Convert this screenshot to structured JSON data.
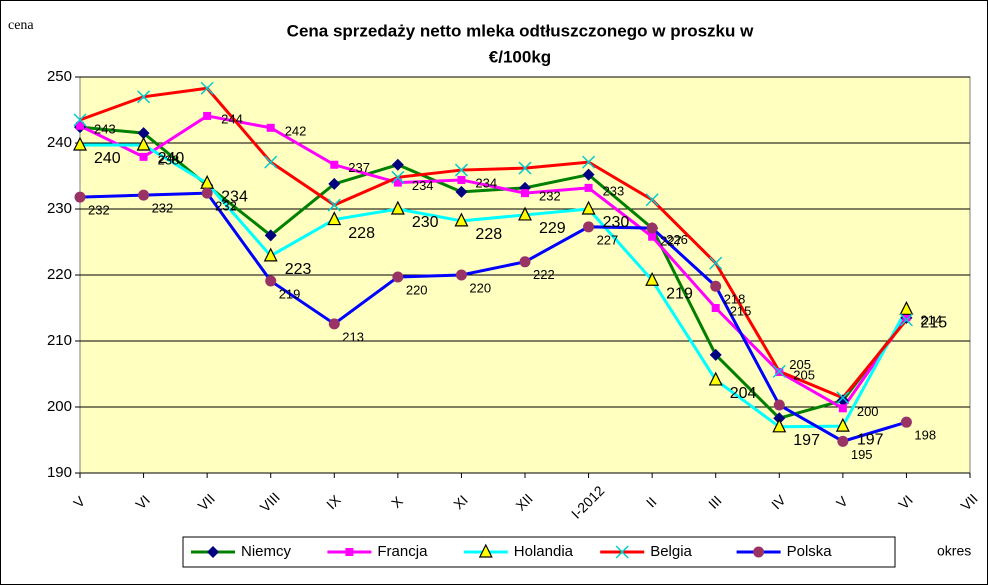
{
  "chart_data": {
    "type": "line",
    "title": [
      "Cena sprzedaży netto mleka odtłuszczonego w proszku w",
      "€/100kg"
    ],
    "y_label": "cena",
    "x_label": "okres",
    "categories": [
      "V",
      "VI",
      "VII",
      "VIII",
      "IX",
      "X",
      "XI",
      "XII",
      "I-2012",
      "II",
      "III",
      "IV",
      "V",
      "VI",
      "VII"
    ],
    "ylim": [
      190,
      250
    ],
    "yticks": [
      190,
      200,
      210,
      220,
      230,
      240,
      250
    ],
    "grid": true,
    "legend": "bottom",
    "series": [
      {
        "name": "Niemcy",
        "color": "#008000",
        "marker": "diamond",
        "marker_color": "#000080",
        "values": [
          242.4,
          241.5,
          233.6,
          226,
          233.8,
          236.7,
          232.6,
          233.2,
          235.2,
          227.1,
          207.9,
          198.3,
          201,
          213.5,
          null
        ],
        "value_labels": [
          null,
          null,
          null,
          null,
          null,
          null,
          null,
          null,
          null,
          null,
          null,
          null,
          null,
          null,
          null
        ]
      },
      {
        "name": "Francja",
        "color": "#ff00ff",
        "marker": "square",
        "marker_color": "#ff00ff",
        "values": [
          242.6,
          237.9,
          244.1,
          242.3,
          236.7,
          234,
          234.4,
          232.4,
          233.2,
          225.8,
          215,
          205.3,
          199.8,
          213.6,
          null
        ],
        "value_labels": [
          "243",
          "238",
          "244",
          "242",
          "237",
          "234",
          "234",
          "232",
          "233",
          "226",
          "215",
          "205",
          "200",
          "214",
          null
        ]
      },
      {
        "name": "Holandia",
        "color": "#00ffff",
        "marker": "triangle",
        "marker_color": "#ffff00",
        "values": [
          239.7,
          239.7,
          233.9,
          222.9,
          228.4,
          230,
          228.2,
          229.1,
          230,
          219.2,
          204.1,
          197,
          197.1,
          214.8,
          null
        ],
        "value_labels": [
          "240",
          "240",
          "234",
          "223",
          "228",
          "230",
          "228",
          "229",
          "230",
          "219",
          "204",
          "197",
          "197",
          "215",
          null
        ]
      },
      {
        "name": "Belgia",
        "color": "#ff0000",
        "marker": "x",
        "marker_color": "#00cccc",
        "values": [
          243.5,
          247,
          248.3,
          237.1,
          230.6,
          234.8,
          235.9,
          236.2,
          237.1,
          231.4,
          221.8,
          205.4,
          201.4,
          213.2,
          null
        ],
        "value_labels": [
          null,
          null,
          null,
          null,
          null,
          null,
          null,
          null,
          null,
          null,
          null,
          "205",
          null,
          null,
          null
        ]
      },
      {
        "name": "Polska",
        "color": "#0000ff",
        "marker": "circle",
        "marker_color": "#993366",
        "values": [
          231.8,
          232.1,
          232.4,
          219.1,
          212.6,
          219.7,
          220,
          222,
          227.3,
          227.1,
          218.3,
          200.3,
          194.8,
          197.7,
          null
        ],
        "value_labels": [
          "232",
          "232",
          "232",
          "219",
          "213",
          "220",
          "220",
          "222",
          "227",
          "227",
          "218",
          null,
          "195",
          "198",
          null
        ]
      }
    ]
  }
}
